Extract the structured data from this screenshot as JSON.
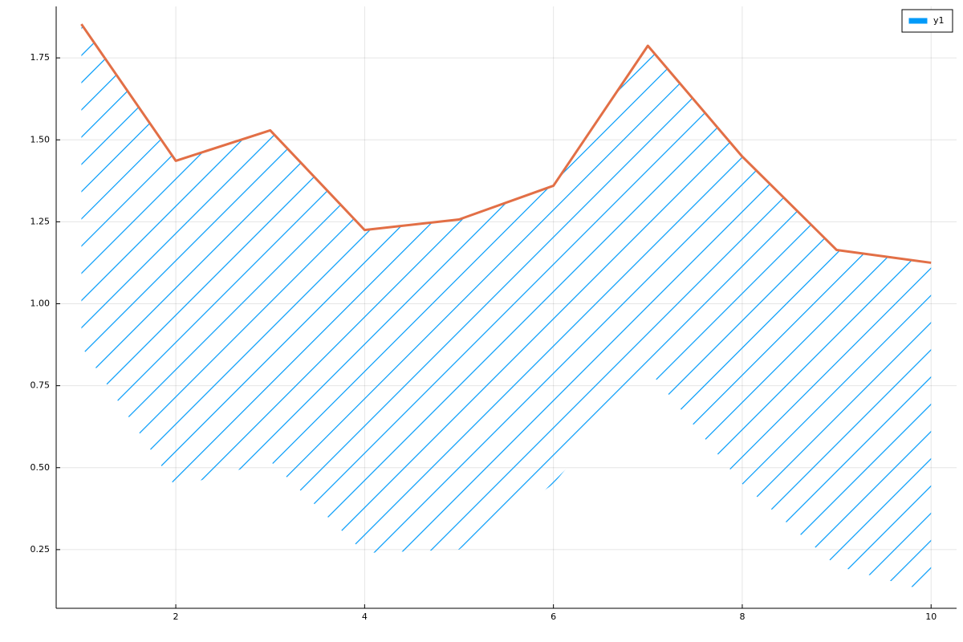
{
  "chart_data": {
    "type": "ribbon-line",
    "x": [
      1,
      2,
      3,
      4,
      5,
      6,
      7,
      8,
      9,
      10
    ],
    "series": [
      {
        "name": "y1",
        "color": "#e26f46",
        "fill_color": "#009af9",
        "values": [
          1.853,
          1.436,
          1.529,
          1.225,
          1.257,
          1.36,
          1.787,
          1.449,
          1.164,
          1.125
        ],
        "ribbon_lower": [
          0.87,
          0.44,
          0.52,
          0.24,
          0.25,
          0.45,
          0.8,
          0.45,
          0.2,
          0.12
        ]
      }
    ],
    "xlim": [
      0.733,
      10.27
    ],
    "ylim": [
      0.071,
      1.907
    ],
    "xticks": [
      2,
      4,
      6,
      8,
      10
    ],
    "yticks": [
      0.25,
      {
        "value": 0.5,
        "label": "0.50"
      },
      0.75,
      {
        "value": 1.0,
        "label": "1.00"
      },
      1.25,
      {
        "value": 1.5,
        "label": "1.50"
      },
      1.75
    ],
    "grid": true,
    "legend": "top-right"
  }
}
